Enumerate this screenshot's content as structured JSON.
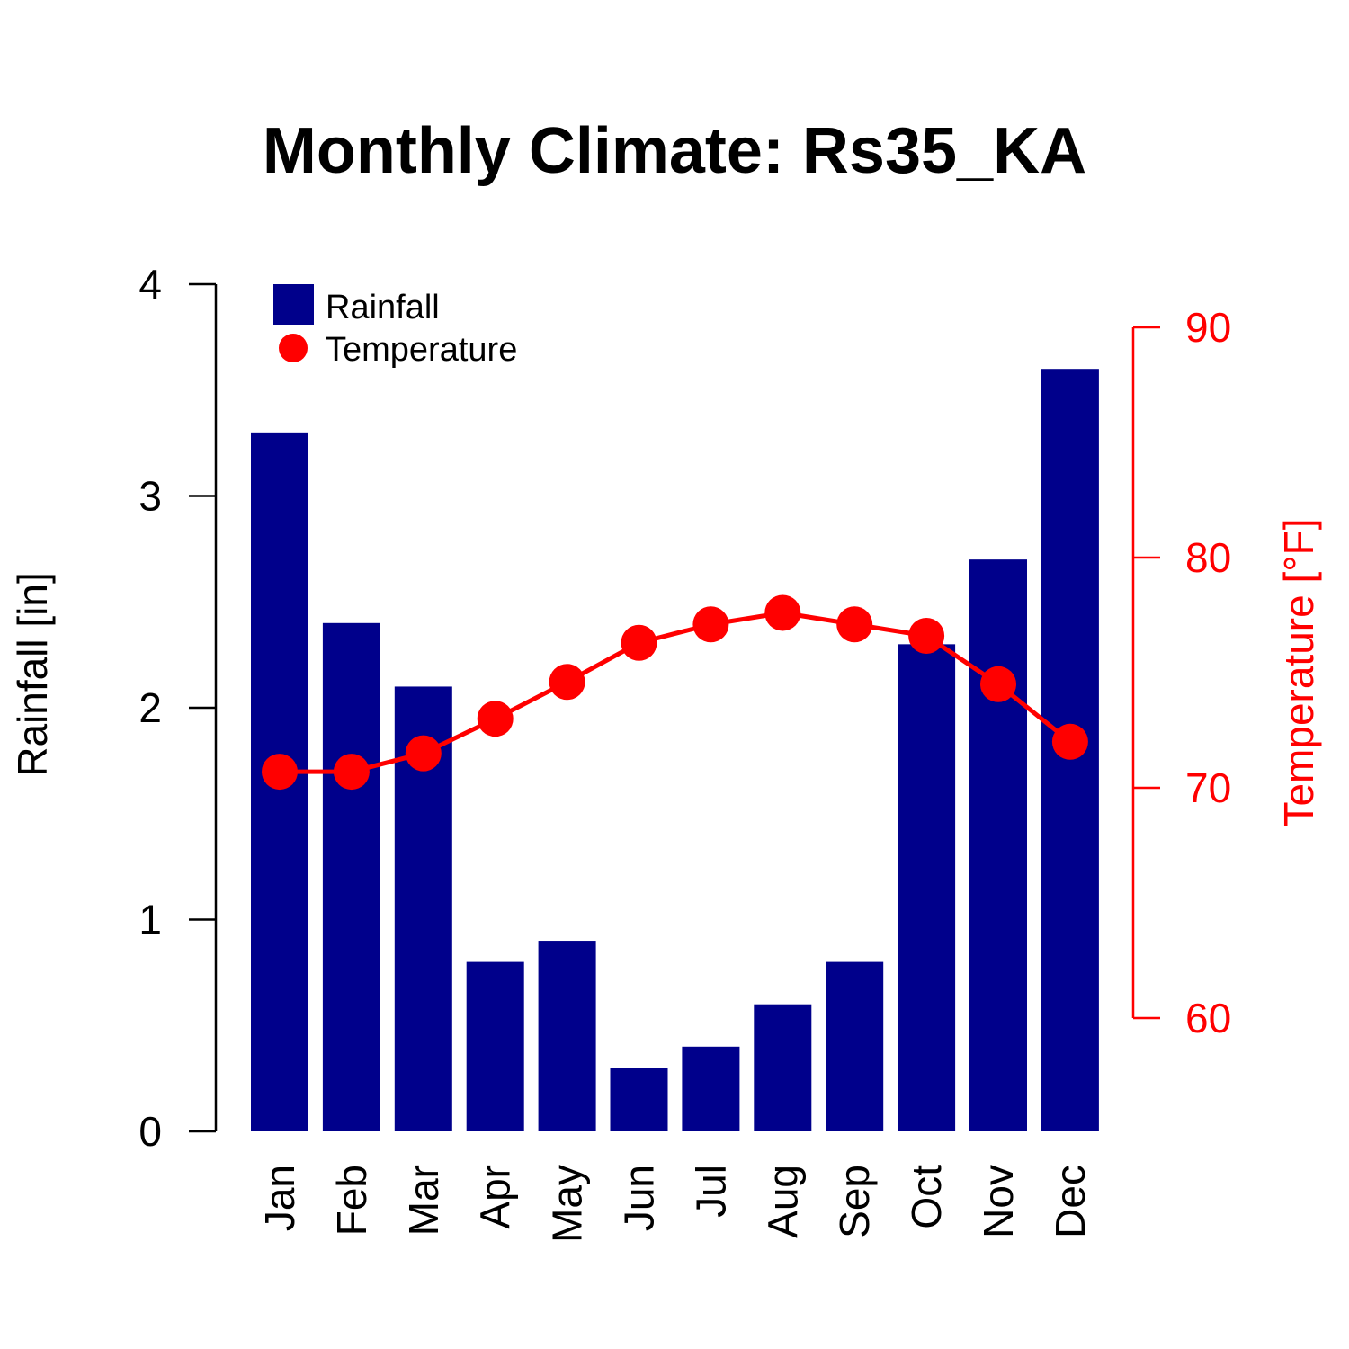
{
  "chart_data": {
    "type": "bar",
    "title": "Monthly Climate: Rs35_KA",
    "categories": [
      "Jan",
      "Feb",
      "Mar",
      "Apr",
      "May",
      "Jun",
      "Jul",
      "Aug",
      "Sep",
      "Oct",
      "Nov",
      "Dec"
    ],
    "series": [
      {
        "name": "Rainfall",
        "type": "bar",
        "axis": "left",
        "color": "#00008B",
        "values": [
          3.3,
          2.4,
          2.1,
          0.8,
          0.9,
          0.3,
          0.4,
          0.6,
          0.8,
          2.3,
          2.7,
          3.6
        ]
      },
      {
        "name": "Temperature",
        "type": "line",
        "axis": "right",
        "color": "#FF0000",
        "values": [
          70.7,
          70.7,
          71.5,
          73.0,
          74.6,
          76.3,
          77.1,
          77.6,
          77.1,
          76.6,
          74.5,
          72.0
        ]
      }
    ],
    "ylabel": "Rainfall [in]",
    "ylim": [
      0,
      4
    ],
    "yticks": [
      "0",
      "1",
      "2",
      "3",
      "4"
    ],
    "y2label": "Temperature [°F]",
    "y2lim": [
      60,
      90
    ],
    "y2ticks": [
      "60",
      "70",
      "80",
      "90"
    ],
    "legend": {
      "position": "top-left",
      "entries": [
        "Rainfall",
        "Temperature"
      ]
    },
    "grid": false
  }
}
